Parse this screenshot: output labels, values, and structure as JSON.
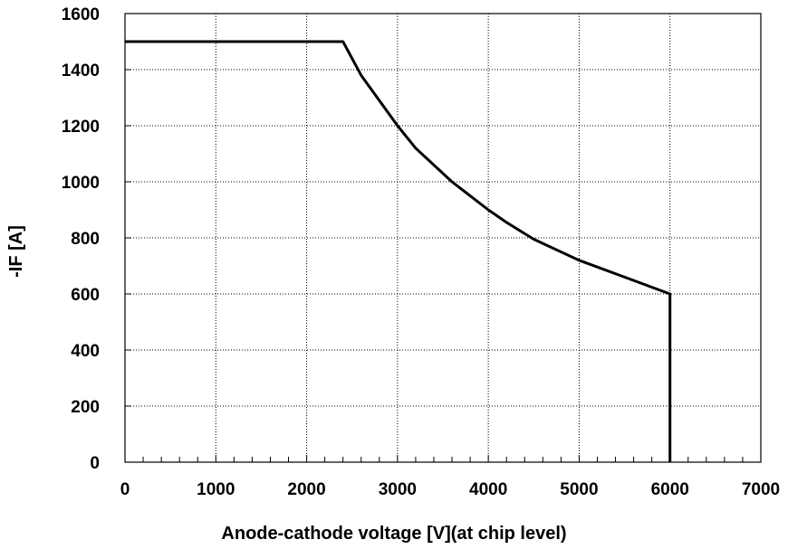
{
  "chart_data": {
    "type": "line",
    "title": "",
    "xlabel": "Anode-cathode voltage [V](at chip level)",
    "ylabel": "-IF  [A]",
    "xlim": [
      0,
      7000
    ],
    "ylim": [
      0,
      1600
    ],
    "x_ticks": [
      "0",
      "1000",
      "2000",
      "3000",
      "4000",
      "5000",
      "6000",
      "7000"
    ],
    "y_ticks": [
      "0",
      "200",
      "400",
      "600",
      "800",
      "1000",
      "1200",
      "1400",
      "1600"
    ],
    "grid": true,
    "legend": "none",
    "series": [
      {
        "color": "#000000",
        "x": [
          0,
          2400,
          2600,
          3000,
          3200,
          3600,
          4000,
          4200,
          4500,
          5000,
          5500,
          6000,
          6000
        ],
        "y": [
          1500,
          1500,
          1380,
          1200,
          1120,
          1000,
          900,
          855,
          795,
          720,
          660,
          600,
          0
        ]
      }
    ]
  }
}
